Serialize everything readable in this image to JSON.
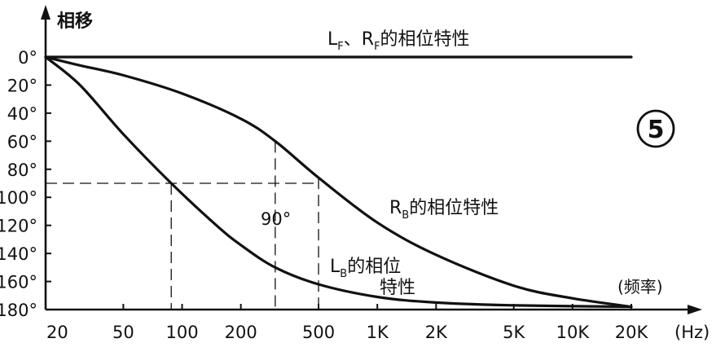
{
  "chart_data": {
    "type": "line",
    "ylabel": "相移",
    "xlabel": "(频率)",
    "x_unit": "(Hz)",
    "x_scale": "log",
    "y_reversed": true,
    "xlim": [
      20,
      20000
    ],
    "ylim": [
      0,
      180
    ],
    "x_ticks": [
      {
        "value": 20,
        "label": "20"
      },
      {
        "value": 50,
        "label": "50"
      },
      {
        "value": 100,
        "label": "100"
      },
      {
        "value": 200,
        "label": "200"
      },
      {
        "value": 500,
        "label": "500"
      },
      {
        "value": 1000,
        "label": "1K"
      },
      {
        "value": 2000,
        "label": "2K"
      },
      {
        "value": 5000,
        "label": "5K"
      },
      {
        "value": 10000,
        "label": "10K"
      },
      {
        "value": 20000,
        "label": "20K"
      }
    ],
    "y_ticks": [
      {
        "value": 0,
        "label": "0°"
      },
      {
        "value": 20,
        "label": "20°"
      },
      {
        "value": 40,
        "label": "40°"
      },
      {
        "value": 60,
        "label": "60°"
      },
      {
        "value": 80,
        "label": "80°"
      },
      {
        "value": 100,
        "label": "100°"
      },
      {
        "value": 120,
        "label": "120°"
      },
      {
        "value": 140,
        "label": "140°"
      },
      {
        "value": 160,
        "label": "160°"
      },
      {
        "value": 180,
        "label": "180°"
      }
    ],
    "series": [
      {
        "label_main": "L",
        "label_sub": "F",
        "label_sep": "、",
        "label_main2": "R",
        "label_sub2": "F",
        "label_tail": "的相位特性",
        "points": [
          [
            20,
            0
          ],
          [
            20000,
            0
          ]
        ]
      },
      {
        "label_main": "R",
        "label_sub": "B",
        "label_tail": "的相位特性",
        "points": [
          [
            20,
            0
          ],
          [
            30,
            6
          ],
          [
            50,
            13
          ],
          [
            100,
            26
          ],
          [
            200,
            44
          ],
          [
            300,
            60
          ],
          [
            500,
            86
          ],
          [
            1000,
            118
          ],
          [
            2000,
            141
          ],
          [
            5000,
            163
          ],
          [
            10000,
            172
          ],
          [
            20000,
            178
          ]
        ]
      },
      {
        "label_main": "L",
        "label_sub": "B",
        "label_line1": "的相位",
        "label_line2": "特性",
        "points": [
          [
            20,
            0
          ],
          [
            30,
            20
          ],
          [
            50,
            55
          ],
          [
            88,
            90
          ],
          [
            150,
            120
          ],
          [
            200,
            134
          ],
          [
            300,
            150
          ],
          [
            500,
            162
          ],
          [
            1000,
            171
          ],
          [
            2000,
            175
          ],
          [
            5000,
            177
          ],
          [
            20000,
            178
          ]
        ]
      }
    ],
    "annotations": {
      "guide_phase": 90,
      "guide_freqs": [
        88,
        300,
        500
      ],
      "guide_label": "90°",
      "figure_number": "5"
    }
  }
}
